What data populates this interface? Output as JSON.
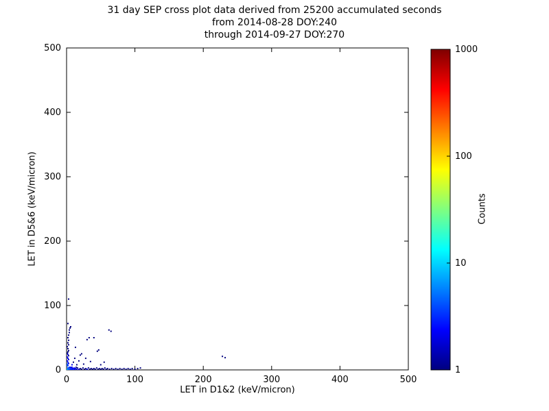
{
  "title": {
    "line1": "31 day SEP cross plot data derived from 25200 accumulated seconds",
    "line2": "from 2014-08-28 DOY:240",
    "line3": "through 2014-09-27 DOY:270"
  },
  "chart_data": {
    "type": "scatter",
    "title": "31 day SEP cross plot data derived from 25200 accumulated seconds from 2014-08-28 DOY:240 through 2014-09-27 DOY:270",
    "xlabel": "LET in D1&2 (keV/micron)",
    "ylabel": "LET in D5&6 (keV/micron)",
    "xlim": [
      0,
      500
    ],
    "ylim": [
      0,
      500
    ],
    "x_ticks": [
      0,
      100,
      200,
      300,
      400,
      500
    ],
    "y_ticks": [
      0,
      100,
      200,
      300,
      400,
      500
    ],
    "grid": false,
    "legend": "none",
    "colorbar": {
      "label": "Counts",
      "scale": "log",
      "range": [
        1,
        1000
      ],
      "ticks": [
        1,
        10,
        100,
        1000
      ],
      "colormap": "jet",
      "stops": [
        [
          0.0,
          "#00007f"
        ],
        [
          0.125,
          "#0000ff"
        ],
        [
          0.375,
          "#00ffff"
        ],
        [
          0.625,
          "#ffff00"
        ],
        [
          0.875,
          "#ff0000"
        ],
        [
          1.0,
          "#7f0000"
        ]
      ]
    },
    "points": [
      [
        1,
        1,
        8
      ],
      [
        2,
        1,
        6
      ],
      [
        2,
        3,
        4
      ],
      [
        3,
        2,
        5
      ],
      [
        4,
        1,
        4
      ],
      [
        4,
        4,
        3
      ],
      [
        5,
        2,
        4
      ],
      [
        6,
        1,
        3
      ],
      [
        6,
        4,
        2
      ],
      [
        7,
        2,
        3
      ],
      [
        8,
        1,
        3
      ],
      [
        8,
        4,
        2
      ],
      [
        9,
        2,
        2
      ],
      [
        10,
        1,
        3
      ],
      [
        11,
        3,
        2
      ],
      [
        12,
        1,
        2
      ],
      [
        13,
        2,
        2
      ],
      [
        14,
        4,
        1
      ],
      [
        15,
        1,
        2
      ],
      [
        16,
        3,
        1
      ],
      [
        18,
        1,
        2
      ],
      [
        20,
        2,
        1
      ],
      [
        22,
        1,
        1
      ],
      [
        24,
        3,
        1
      ],
      [
        26,
        1,
        1
      ],
      [
        28,
        2,
        1
      ],
      [
        30,
        1,
        2
      ],
      [
        32,
        3,
        1
      ],
      [
        34,
        1,
        1
      ],
      [
        36,
        2,
        1
      ],
      [
        38,
        1,
        1
      ],
      [
        40,
        2,
        1
      ],
      [
        42,
        1,
        1
      ],
      [
        44,
        3,
        1
      ],
      [
        46,
        1,
        1
      ],
      [
        48,
        2,
        1
      ],
      [
        50,
        1,
        1
      ],
      [
        52,
        2,
        1
      ],
      [
        54,
        1,
        1
      ],
      [
        56,
        3,
        1
      ],
      [
        58,
        1,
        1
      ],
      [
        60,
        2,
        1
      ],
      [
        63,
        1,
        1
      ],
      [
        66,
        2,
        1
      ],
      [
        69,
        1,
        1
      ],
      [
        72,
        2,
        1
      ],
      [
        75,
        1,
        1
      ],
      [
        78,
        2,
        1
      ],
      [
        81,
        1,
        1
      ],
      [
        84,
        2,
        1
      ],
      [
        87,
        1,
        1
      ],
      [
        90,
        2,
        1
      ],
      [
        93,
        1,
        1
      ],
      [
        96,
        2,
        1
      ],
      [
        100,
        1,
        1
      ],
      [
        104,
        2,
        1
      ],
      [
        108,
        3,
        1
      ],
      [
        1,
        6,
        5
      ],
      [
        2,
        7,
        3
      ],
      [
        1,
        9,
        4
      ],
      [
        3,
        10,
        2
      ],
      [
        2,
        12,
        3
      ],
      [
        1,
        14,
        2
      ],
      [
        3,
        16,
        2
      ],
      [
        2,
        18,
        2
      ],
      [
        1,
        20,
        2
      ],
      [
        3,
        22,
        1
      ],
      [
        2,
        24,
        2
      ],
      [
        1,
        26,
        1
      ],
      [
        2,
        28,
        1
      ],
      [
        3,
        30,
        1
      ],
      [
        2,
        33,
        1
      ],
      [
        1,
        36,
        1
      ],
      [
        3,
        39,
        1
      ],
      [
        2,
        42,
        1
      ],
      [
        3,
        46,
        1
      ],
      [
        2,
        50,
        1
      ],
      [
        3,
        54,
        1
      ],
      [
        4,
        58,
        1
      ],
      [
        4,
        62,
        1
      ],
      [
        5,
        65,
        1
      ],
      [
        6,
        67,
        1
      ],
      [
        2,
        72,
        1
      ],
      [
        3,
        110,
        1
      ],
      [
        8,
        8,
        2
      ],
      [
        10,
        12,
        1
      ],
      [
        12,
        18,
        1
      ],
      [
        15,
        8,
        1
      ],
      [
        18,
        14,
        1
      ],
      [
        13,
        35,
        1
      ],
      [
        20,
        23,
        1
      ],
      [
        22,
        25,
        1
      ],
      [
        25,
        9,
        1
      ],
      [
        28,
        18,
        1
      ],
      [
        30,
        47,
        1
      ],
      [
        33,
        50,
        1
      ],
      [
        35,
        13,
        1
      ],
      [
        40,
        50,
        1
      ],
      [
        45,
        29,
        1
      ],
      [
        47,
        31,
        1
      ],
      [
        50,
        8,
        1
      ],
      [
        55,
        12,
        1
      ],
      [
        62,
        62,
        1
      ],
      [
        65,
        60,
        1
      ],
      [
        228,
        21,
        1
      ],
      [
        232,
        19,
        1
      ]
    ]
  }
}
